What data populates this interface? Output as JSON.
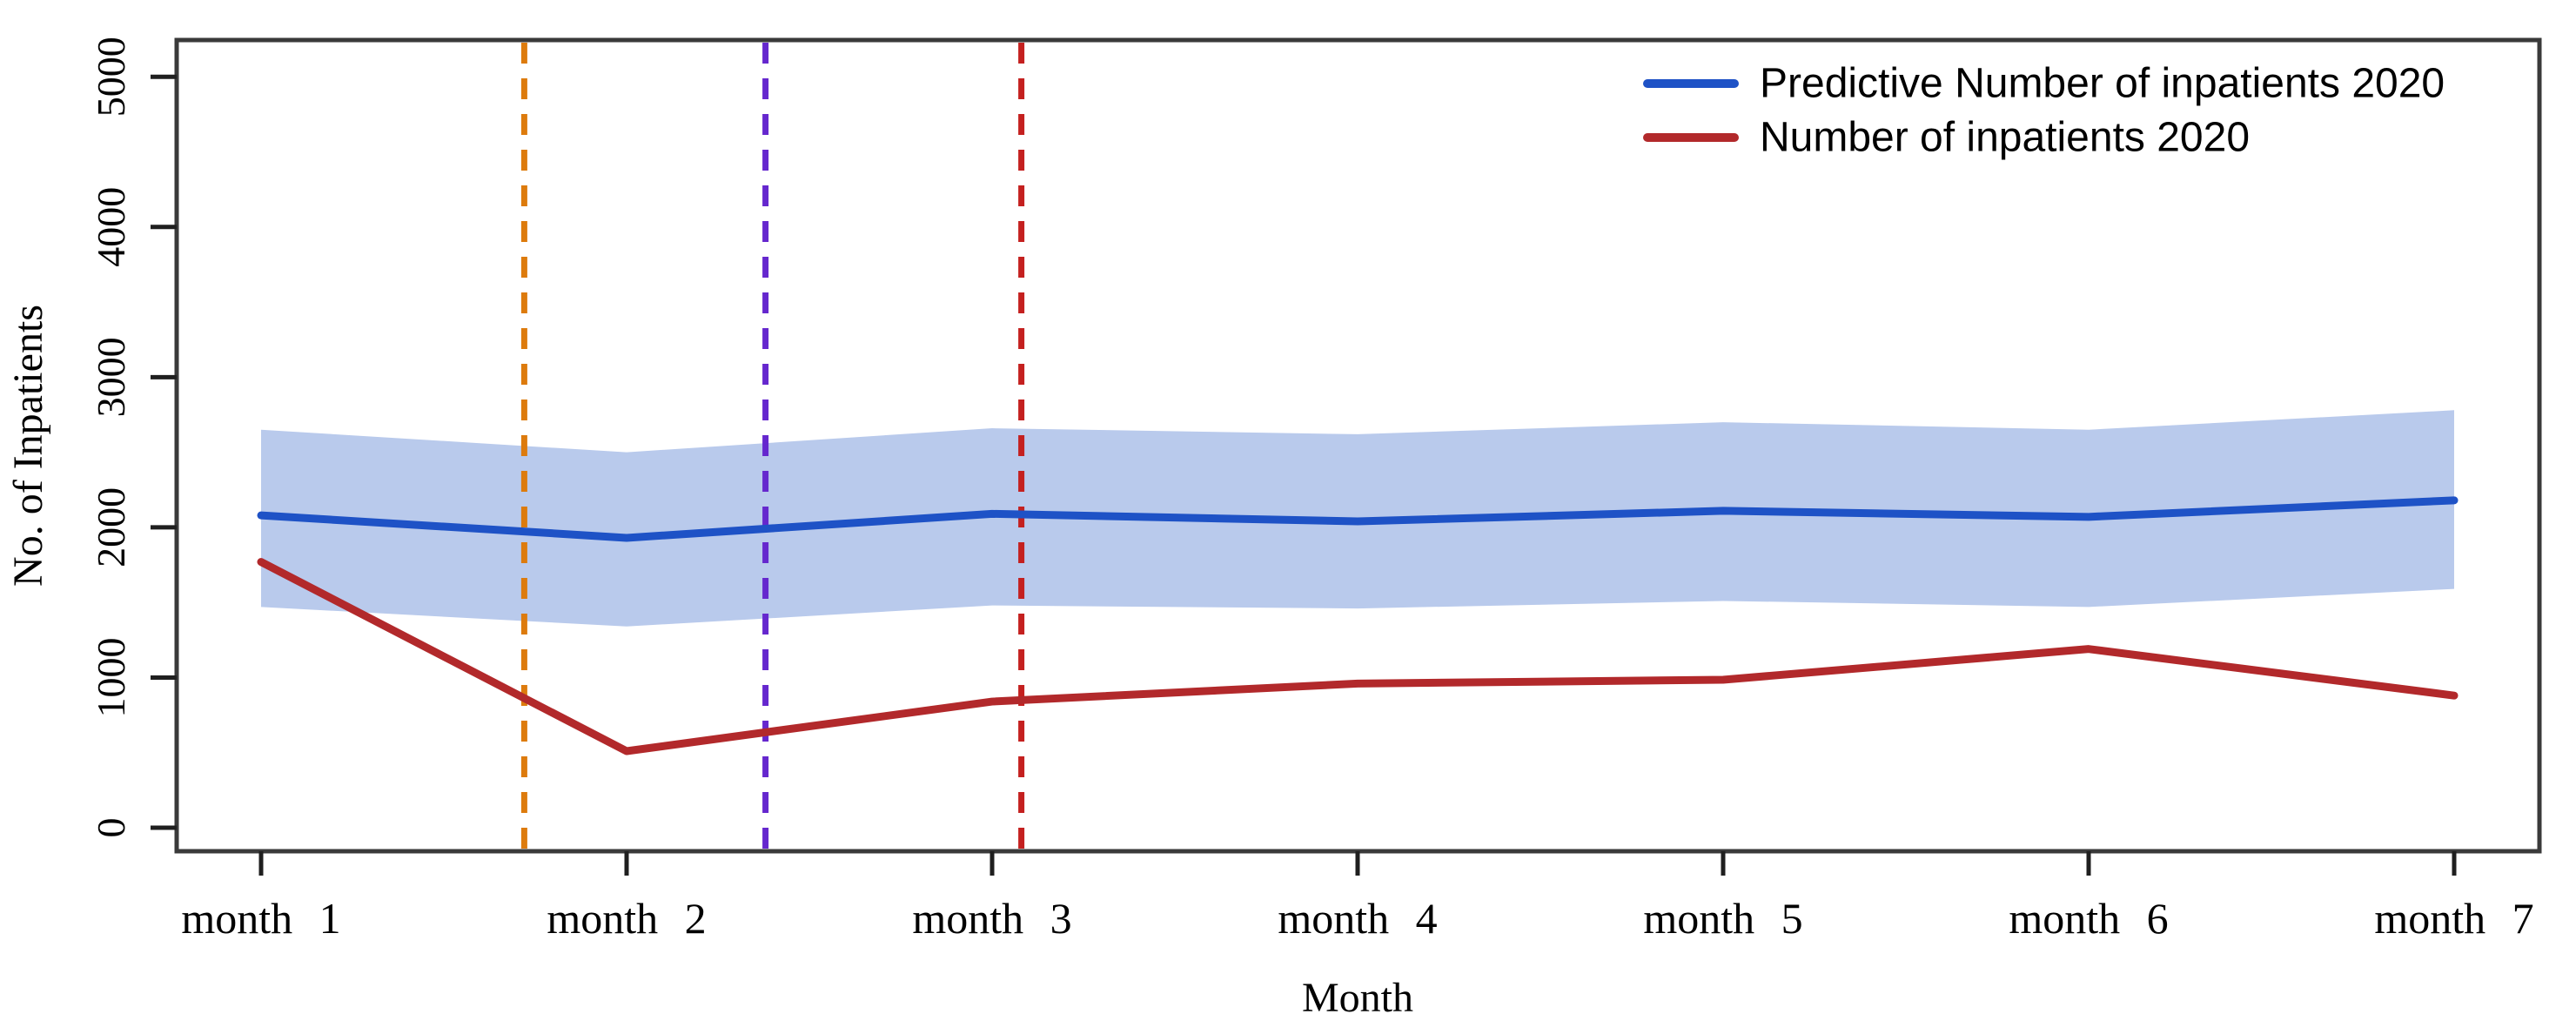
{
  "chart_data": {
    "type": "line",
    "title": "",
    "xlabel": "Month",
    "ylabel": "No. of Inpatients",
    "x_tick_labels": [
      "month 1",
      "month 2",
      "month 3",
      "month 4",
      "month 5",
      "month 6",
      "month 7"
    ],
    "x_values": [
      1,
      2,
      3,
      4,
      5,
      6,
      7
    ],
    "y_ticks": [
      0,
      1000,
      2000,
      3000,
      4000,
      5000
    ],
    "ylim": [
      0,
      5000
    ],
    "grid": false,
    "legend_position": "top-right-inside",
    "series": [
      {
        "name": "Predictive Number of inpatients 2020",
        "color": "#1E52C6",
        "style": "solid",
        "values": [
          2080,
          1930,
          2090,
          2040,
          2110,
          2070,
          2180
        ]
      },
      {
        "name": "Number of inpatients 2020",
        "color": "#B2292B",
        "style": "solid",
        "values": [
          1770,
          510,
          840,
          960,
          985,
          1190,
          880
        ]
      }
    ],
    "confidence_band": {
      "belongs_to": "Predictive Number of inpatients 2020",
      "color": "#B9CAEC",
      "upper": [
        2650,
        2500,
        2660,
        2620,
        2700,
        2650,
        2780
      ],
      "lower": [
        1470,
        1340,
        1480,
        1460,
        1510,
        1470,
        1590
      ]
    },
    "vlines": [
      {
        "x": 1.72,
        "color": "#DD7B0D",
        "style": "dashed",
        "color_name": "orange"
      },
      {
        "x": 2.38,
        "color": "#6527CE",
        "style": "dashed",
        "color_name": "purple"
      },
      {
        "x": 3.08,
        "color": "#C4201F",
        "style": "dashed",
        "color_name": "red"
      }
    ],
    "axis_color": "#3A3A3A",
    "tick_color": "#1F1F1F"
  }
}
